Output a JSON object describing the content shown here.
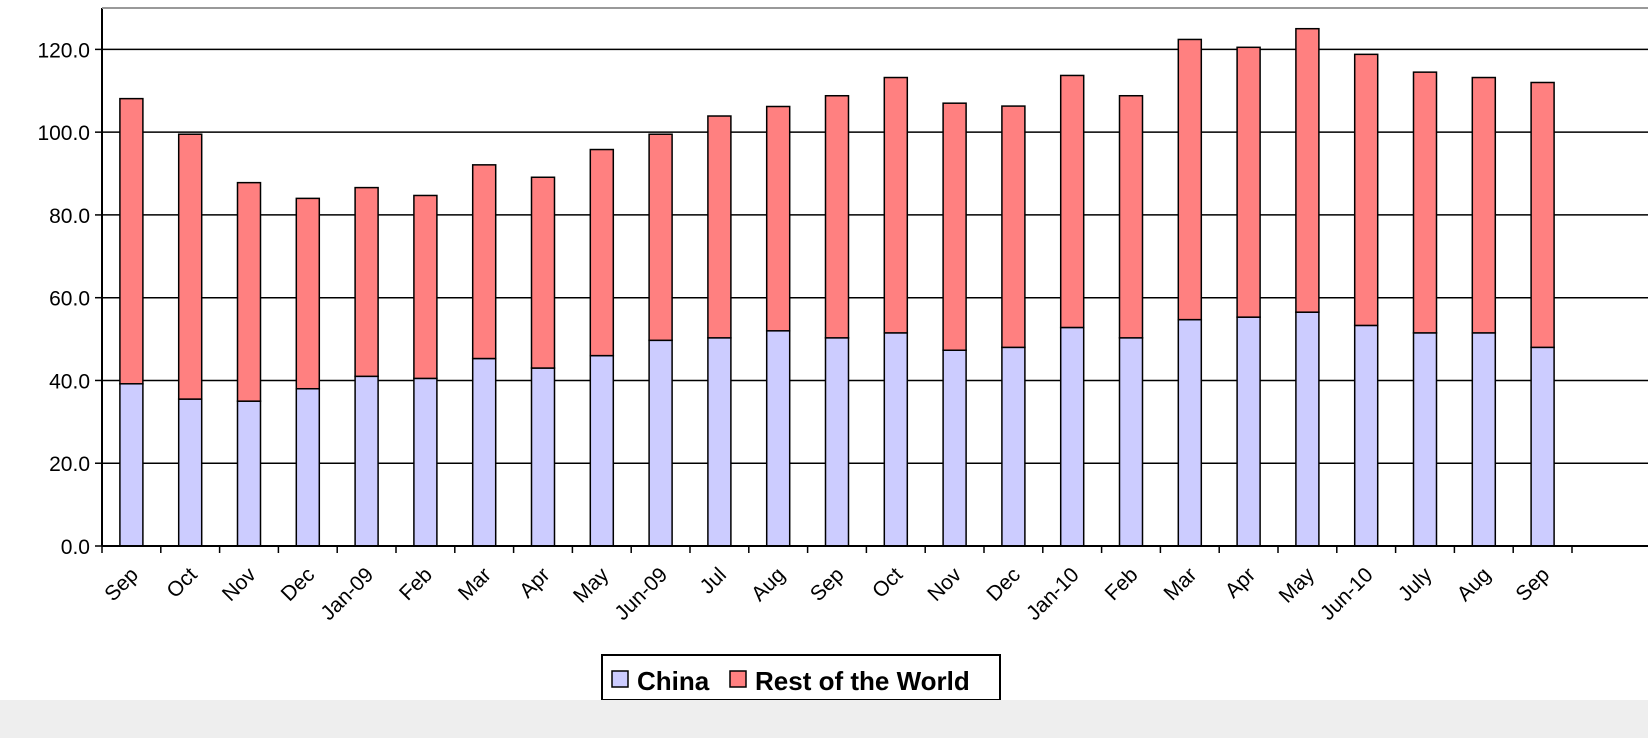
{
  "chart_data": {
    "type": "bar",
    "stacked": true,
    "categories": [
      "Sep",
      "Oct",
      "Nov",
      "Dec",
      "Jan-09",
      "Feb",
      "Mar",
      "Apr",
      "May",
      "Jun-09",
      "Jul",
      "Aug",
      "Sep",
      "Oct",
      "Nov",
      "Dec",
      "Jan-10",
      "Feb",
      "Mar",
      "Apr",
      "May",
      "Jun-10",
      "July",
      "Aug",
      "Sep"
    ],
    "series": [
      {
        "name": "China",
        "color": "#ccccff",
        "values": [
          39.2,
          35.5,
          35.0,
          38.0,
          41.0,
          40.5,
          45.3,
          43.0,
          46.0,
          49.7,
          50.3,
          52.0,
          50.3,
          51.5,
          47.3,
          48.0,
          52.8,
          50.3,
          54.7,
          55.3,
          56.5,
          53.3,
          51.5,
          51.5,
          48.0
        ]
      },
      {
        "name": "Rest of the World",
        "color": "#ff8080",
        "values": [
          68.9,
          64.0,
          52.8,
          46.0,
          45.6,
          44.2,
          46.8,
          46.1,
          49.8,
          49.8,
          53.6,
          54.2,
          58.5,
          61.7,
          59.7,
          58.3,
          60.9,
          58.5,
          67.7,
          65.2,
          68.5,
          65.5,
          63.0,
          61.7,
          64.0
        ]
      }
    ],
    "yTickLabels": [
      "0.0",
      "20.0",
      "40.0",
      "60.0",
      "80.0",
      "100.0",
      "120.0"
    ],
    "ylim": [
      0,
      130
    ],
    "grid": true,
    "legend": "bottom-center"
  }
}
